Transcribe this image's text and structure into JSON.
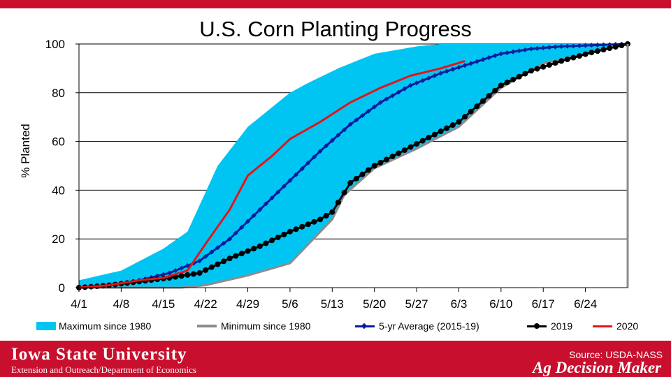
{
  "colors": {
    "brand_red": "#c8102e",
    "max_fill": "#00c5f2",
    "min_line": "#8c8c8c",
    "avg_line": "#001f9c",
    "y2019": "#000000",
    "y2020": "#e0161b"
  },
  "footer": {
    "university": "Iowa State University",
    "department": "Extension and Outreach/Department of Economics",
    "source": "Source: USDA-NASS",
    "brand": "Ag Decision Maker"
  },
  "chart_data": {
    "type": "area",
    "title": "U.S. Corn Planting Progress",
    "xlabel": "",
    "ylabel": "% Planted",
    "ylim": [
      0,
      100
    ],
    "xlim": [
      0,
      91
    ],
    "grid": true,
    "x_ticks": [
      {
        "day": 0,
        "label": "4/1"
      },
      {
        "day": 7,
        "label": "4/8"
      },
      {
        "day": 14,
        "label": "4/15"
      },
      {
        "day": 21,
        "label": "4/22"
      },
      {
        "day": 28,
        "label": "4/29"
      },
      {
        "day": 35,
        "label": "5/6"
      },
      {
        "day": 42,
        "label": "5/13"
      },
      {
        "day": 49,
        "label": "5/20"
      },
      {
        "day": 56,
        "label": "5/27"
      },
      {
        "day": 63,
        "label": "6/3"
      },
      {
        "day": 70,
        "label": "6/10"
      },
      {
        "day": 77,
        "label": "6/17"
      },
      {
        "day": 84,
        "label": "6/24"
      }
    ],
    "y_ticks": [
      0,
      20,
      40,
      60,
      80,
      100
    ],
    "legend": [
      "Maximum since 1980",
      "Minimum since 1980",
      "5-yr Average (2015-19)",
      "2019",
      "2020"
    ],
    "series": [
      {
        "name": "Maximum since 1980",
        "x": [
          0,
          7,
          14,
          18,
          23,
          28,
          35,
          38,
          43,
          49,
          56,
          60,
          91
        ],
        "values": [
          3,
          7,
          16,
          23,
          50,
          66,
          80,
          84,
          90,
          96,
          99,
          100,
          100
        ]
      },
      {
        "name": "Minimum since 1980",
        "x": [
          0,
          17,
          21,
          28,
          35,
          42,
          44,
          49,
          56,
          63,
          70,
          77,
          84,
          91
        ],
        "values": [
          0,
          0,
          1,
          5,
          10,
          28,
          38,
          49,
          57,
          66,
          82,
          92,
          96,
          100
        ]
      },
      {
        "name": "5-yr Average (2015-19)",
        "x": [
          0,
          5,
          10,
          15,
          20,
          25,
          30,
          35,
          40,
          45,
          50,
          55,
          60,
          65,
          70,
          75,
          80,
          85,
          91
        ],
        "values": [
          0,
          1,
          3,
          6,
          11,
          20,
          32,
          44,
          56,
          67,
          76,
          83,
          88,
          92,
          96,
          98,
          99,
          99.5,
          100
        ]
      },
      {
        "name": "2019",
        "x": [
          0,
          5,
          10,
          15,
          20,
          25,
          30,
          35,
          40,
          42,
          45,
          49,
          56,
          63,
          70,
          75,
          80,
          85,
          91
        ],
        "values": [
          0,
          1,
          2.5,
          4,
          6,
          12,
          17,
          23,
          28,
          31,
          43,
          50,
          59,
          68,
          83,
          89,
          93,
          96.5,
          100
        ]
      },
      {
        "name": "2020",
        "x": [
          0,
          5,
          10,
          14,
          18,
          21,
          25,
          28,
          32,
          35,
          40,
          45,
          50,
          55,
          60,
          64
        ],
        "values": [
          0,
          1,
          3,
          4,
          7,
          18,
          32,
          46,
          54,
          61,
          68,
          76,
          82,
          87,
          90,
          93
        ]
      }
    ]
  }
}
